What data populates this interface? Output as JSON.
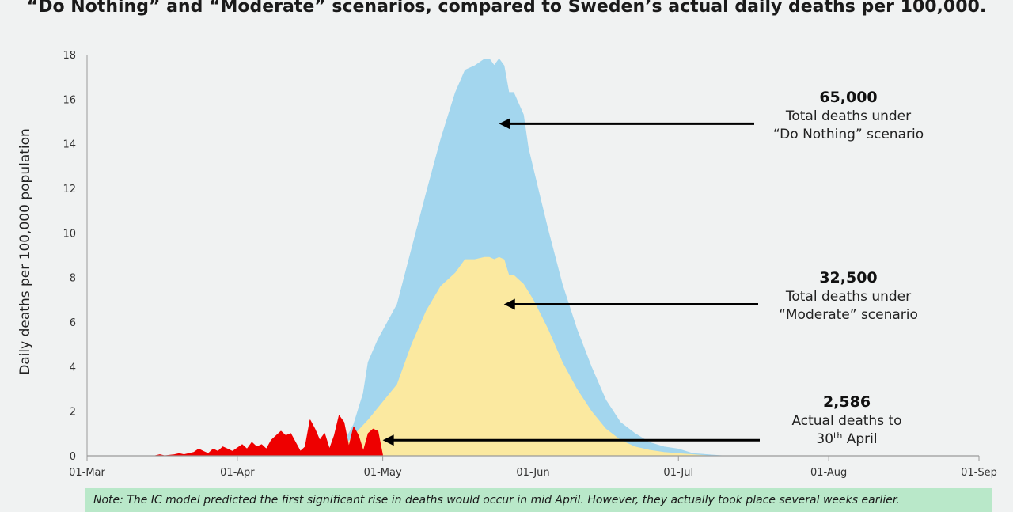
{
  "title": "“Do Nothing” and “Moderate” scenarios, compared to Sweden’s actual daily deaths per 100,000.",
  "note": "Note: The IC model predicted the first significant rise in deaths would occur in mid April. However, they actually took place several weeks earlier.",
  "chart_data": {
    "type": "area",
    "ylabel": "Daily deaths per 100,000 population",
    "xlabel": "",
    "ylim": [
      0,
      18
    ],
    "yticks": [
      "0",
      "2",
      "4",
      "6",
      "8",
      "10",
      "12",
      "14",
      "16",
      "18"
    ],
    "xlim": [
      0,
      184
    ],
    "xticks": [
      {
        "day": 0,
        "label": "01-Mar"
      },
      {
        "day": 31,
        "label": "01-Apr"
      },
      {
        "day": 61,
        "label": "01-May"
      },
      {
        "day": 92,
        "label": "01-Jun"
      },
      {
        "day": 122,
        "label": "01-Jul"
      },
      {
        "day": 153,
        "label": "01-Aug"
      },
      {
        "day": 184,
        "label": "01-Sep"
      }
    ],
    "series": [
      {
        "name": "Do Nothing",
        "color": "#a3d6ee",
        "x": [
          53,
          55,
          57,
          58,
          60,
          62,
          64,
          67,
          70,
          73,
          76,
          78,
          80,
          82,
          83,
          84,
          85,
          86,
          87,
          88,
          89,
          90,
          91,
          93,
          95,
          98,
          101,
          104,
          107,
          110,
          113,
          116,
          119,
          122,
          125,
          128,
          131
        ],
        "y": [
          0.6,
          1.4,
          2.8,
          4.2,
          5.2,
          6.0,
          6.8,
          9.3,
          11.8,
          14.2,
          16.3,
          17.3,
          17.5,
          17.8,
          17.8,
          17.5,
          17.8,
          17.5,
          16.3,
          16.3,
          15.8,
          15.3,
          13.8,
          12.0,
          10.2,
          7.7,
          5.7,
          4.0,
          2.5,
          1.5,
          1.0,
          0.6,
          0.4,
          0.3,
          0.1,
          0.05,
          0
        ]
      },
      {
        "name": "Moderate",
        "color": "#fbe9a0",
        "x": [
          53,
          55,
          58,
          61,
          64,
          67,
          70,
          73,
          76,
          78,
          80,
          82,
          83,
          84,
          85,
          86,
          87,
          88,
          89,
          90,
          92,
          95,
          98,
          101,
          104,
          107,
          110,
          113,
          116,
          119,
          122,
          125,
          128
        ],
        "y": [
          0.4,
          0.9,
          1.6,
          2.4,
          3.2,
          5.0,
          6.5,
          7.6,
          8.2,
          8.8,
          8.8,
          8.9,
          8.9,
          8.8,
          8.9,
          8.8,
          8.1,
          8.1,
          7.9,
          7.7,
          7.0,
          5.7,
          4.2,
          3.0,
          2.0,
          1.2,
          0.7,
          0.4,
          0.25,
          0.15,
          0.1,
          0.05,
          0
        ]
      },
      {
        "name": "Actual",
        "color": "#ee0000",
        "x": [
          14,
          15,
          16,
          18,
          19,
          20,
          22,
          23,
          24,
          25,
          26,
          27,
          28,
          29,
          30,
          31,
          32,
          33,
          34,
          35,
          36,
          37,
          38,
          39,
          40,
          41,
          42,
          43,
          44,
          45,
          46,
          47,
          48,
          49,
          50,
          51,
          52,
          53,
          54,
          55,
          56,
          57,
          58,
          59,
          60,
          61
        ],
        "y": [
          0,
          0.05,
          0,
          0.05,
          0.1,
          0.05,
          0.15,
          0.3,
          0.2,
          0.1,
          0.3,
          0.2,
          0.4,
          0.3,
          0.2,
          0.35,
          0.5,
          0.3,
          0.6,
          0.4,
          0.5,
          0.3,
          0.7,
          0.9,
          1.1,
          0.9,
          1.0,
          0.6,
          0.2,
          0.4,
          1.6,
          1.2,
          0.7,
          1.0,
          0.3,
          0.9,
          1.8,
          1.5,
          0.4,
          1.3,
          0.9,
          0.2,
          1.0,
          1.2,
          1.1,
          0
        ]
      }
    ],
    "annotations": [
      {
        "value": "65,000",
        "lines": [
          "Total deaths under",
          "“Do Nothing” scenario"
        ],
        "arrow_to": {
          "day": 85,
          "y": 14.9
        }
      },
      {
        "value": "32,500",
        "lines": [
          "Total deaths under",
          "“Moderate” scenario"
        ],
        "arrow_to": {
          "day": 86,
          "y": 6.8
        }
      },
      {
        "value": "2,586",
        "lines": [
          "Actual deaths to",
          "30th April"
        ],
        "arrow_to": {
          "day": 61,
          "y": 0.7
        }
      }
    ]
  }
}
